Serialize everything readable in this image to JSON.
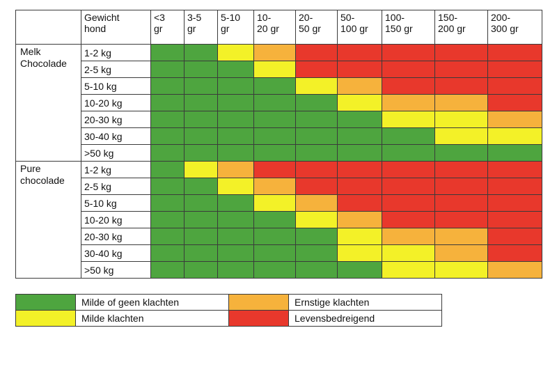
{
  "header": {
    "weight_label": "Gewicht\nhond",
    "columns": [
      "<3\ngr",
      "3-5\ngr",
      "5-10\ngr",
      "10-\n20 gr",
      "20-\n50 gr",
      "50-\n100 gr",
      "100-\n150 gr",
      "150-\n200 gr",
      "200-\n300 gr"
    ]
  },
  "groups": [
    {
      "name": "Melk\nChocolade",
      "rows": [
        {
          "weight": "1-2 kg",
          "levels": [
            "g",
            "g",
            "y",
            "o",
            "r",
            "r",
            "r",
            "r",
            "r"
          ]
        },
        {
          "weight": "2-5 kg",
          "levels": [
            "g",
            "g",
            "g",
            "y",
            "r",
            "r",
            "r",
            "r",
            "r"
          ]
        },
        {
          "weight": "5-10 kg",
          "levels": [
            "g",
            "g",
            "g",
            "g",
            "y",
            "o",
            "r",
            "r",
            "r"
          ]
        },
        {
          "weight": "10-20 kg",
          "levels": [
            "g",
            "g",
            "g",
            "g",
            "g",
            "y",
            "o",
            "o",
            "r"
          ]
        },
        {
          "weight": "20-30 kg",
          "levels": [
            "g",
            "g",
            "g",
            "g",
            "g",
            "g",
            "y",
            "y",
            "o"
          ]
        },
        {
          "weight": "30-40 kg",
          "levels": [
            "g",
            "g",
            "g",
            "g",
            "g",
            "g",
            "g",
            "y",
            "y"
          ]
        },
        {
          "weight": ">50 kg",
          "levels": [
            "g",
            "g",
            "g",
            "g",
            "g",
            "g",
            "g",
            "g",
            "g"
          ]
        }
      ]
    },
    {
      "name": "Pure\nchocolade",
      "rows": [
        {
          "weight": "1-2 kg",
          "levels": [
            "g",
            "y",
            "o",
            "r",
            "r",
            "r",
            "r",
            "r",
            "r"
          ]
        },
        {
          "weight": "2-5 kg",
          "levels": [
            "g",
            "g",
            "y",
            "o",
            "r",
            "r",
            "r",
            "r",
            "r"
          ]
        },
        {
          "weight": "5-10 kg",
          "levels": [
            "g",
            "g",
            "g",
            "y",
            "o",
            "r",
            "r",
            "r",
            "r"
          ]
        },
        {
          "weight": "10-20 kg",
          "levels": [
            "g",
            "g",
            "g",
            "g",
            "y",
            "o",
            "r",
            "r",
            "r"
          ]
        },
        {
          "weight": "20-30 kg",
          "levels": [
            "g",
            "g",
            "g",
            "g",
            "g",
            "y",
            "o",
            "o",
            "r"
          ]
        },
        {
          "weight": "30-40 kg",
          "levels": [
            "g",
            "g",
            "g",
            "g",
            "g",
            "y",
            "y",
            "o",
            "r"
          ]
        },
        {
          "weight": ">50 kg",
          "levels": [
            "g",
            "g",
            "g",
            "g",
            "g",
            "g",
            "y",
            "y",
            "o"
          ]
        }
      ]
    }
  ],
  "legend": {
    "green": "Milde of geen klachten",
    "yellow": "Milde klachten",
    "orange": "Ernstige klachten",
    "red": "Levensbedreigend"
  },
  "colors": {
    "green": "#4ea53f",
    "yellow": "#f3f128",
    "orange": "#f6b23c",
    "red": "#e8382c"
  },
  "level_names": {
    "g": "Milde of geen klachten",
    "y": "Milde klachten",
    "o": "Ernstige klachten",
    "r": "Levensbedreigend"
  }
}
